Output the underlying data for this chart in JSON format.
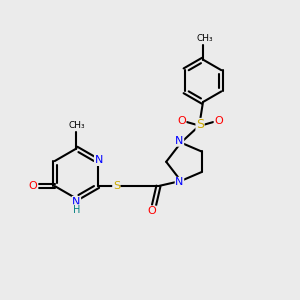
{
  "bg_color": "#ebebeb",
  "atom_colors": {
    "C": "#000000",
    "N": "#0000ff",
    "O": "#ff0000",
    "S": "#ccaa00",
    "H": "#008080"
  },
  "bond_color": "#000000",
  "line_width": 1.5,
  "font_size_atom": 8,
  "font_size_small": 6.5
}
